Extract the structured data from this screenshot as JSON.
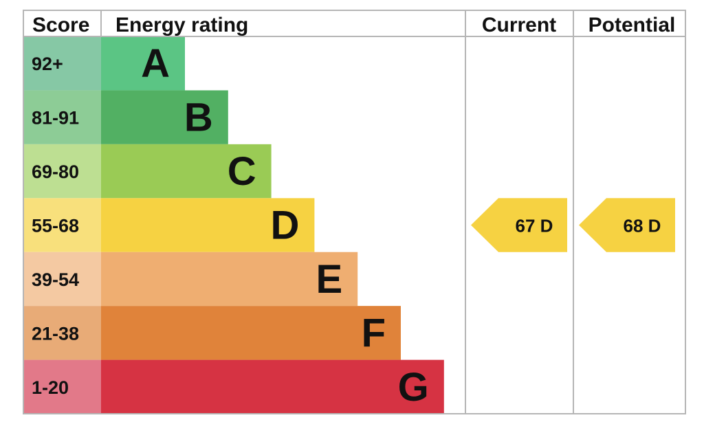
{
  "headers": {
    "score": "Score",
    "energy_rating": "Energy rating",
    "current": "Current",
    "potential": "Potential"
  },
  "chart_data": {
    "type": "bar",
    "title": "",
    "xlabel": "",
    "ylabel": "",
    "bands": [
      {
        "letter": "A",
        "range": "92+",
        "color": "#5BC584",
        "score_bg": "#86C8A5"
      },
      {
        "letter": "B",
        "range": "81-91",
        "color": "#52B063",
        "score_bg": "#8DCC96"
      },
      {
        "letter": "C",
        "range": "69-80",
        "color": "#9ACB55",
        "score_bg": "#BDDF92"
      },
      {
        "letter": "D",
        "range": "55-68",
        "color": "#F6D242",
        "score_bg": "#F8E07C"
      },
      {
        "letter": "E",
        "range": "39-54",
        "color": "#EFAE71",
        "score_bg": "#F4C9A2"
      },
      {
        "letter": "F",
        "range": "21-38",
        "color": "#E0833A",
        "score_bg": "#E8AB77"
      },
      {
        "letter": "G",
        "range": "1-20",
        "color": "#D63343",
        "score_bg": "#E27989"
      }
    ],
    "current": {
      "value": 67,
      "band": "D",
      "label": "67  D",
      "color": "#F6D242"
    },
    "potential": {
      "value": 68,
      "band": "D",
      "label": "68  D",
      "color": "#F6D242"
    }
  }
}
